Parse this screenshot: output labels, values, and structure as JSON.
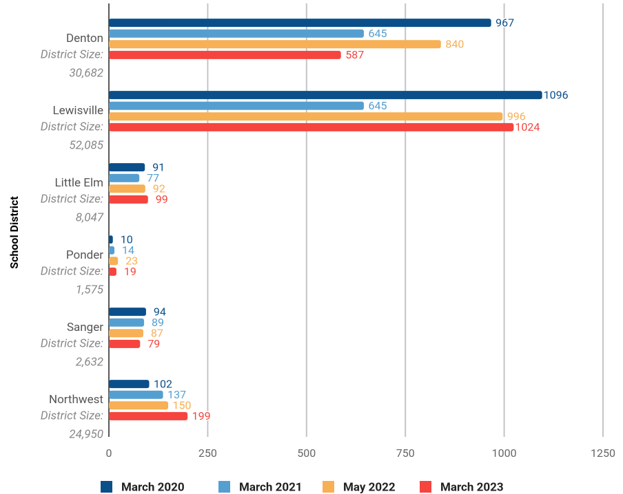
{
  "chart_data": {
    "type": "hbar",
    "y_axis_label": "School District",
    "categories": [
      "Denton",
      "Lewisville",
      "Little Elm",
      "Ponder",
      "Sanger",
      "Northwest"
    ],
    "category_notes": [
      "District Size: 30,682",
      "District Size: 52,085",
      "District Size: 8,047",
      "District Size: 1,575",
      "District Size: 2,632",
      "District Size: 24,950"
    ],
    "series": [
      {
        "name": "March 2020",
        "color": "#0b4f8a",
        "values": [
          967,
          1096,
          91,
          10,
          94,
          102
        ]
      },
      {
        "name": "March 2021",
        "color": "#559fd0",
        "values": [
          645,
          645,
          77,
          14,
          89,
          137
        ]
      },
      {
        "name": "May 2022",
        "color": "#f7b055",
        "values": [
          840,
          996,
          92,
          23,
          87,
          150
        ]
      },
      {
        "name": "March 2023",
        "color": "#f5453e",
        "values": [
          587,
          1024,
          99,
          19,
          79,
          199
        ]
      }
    ],
    "xlim": [
      0,
      1250
    ],
    "xticks": [
      0,
      250,
      500,
      750,
      1000,
      1250
    ],
    "grid": true,
    "legend": "bottom"
  }
}
